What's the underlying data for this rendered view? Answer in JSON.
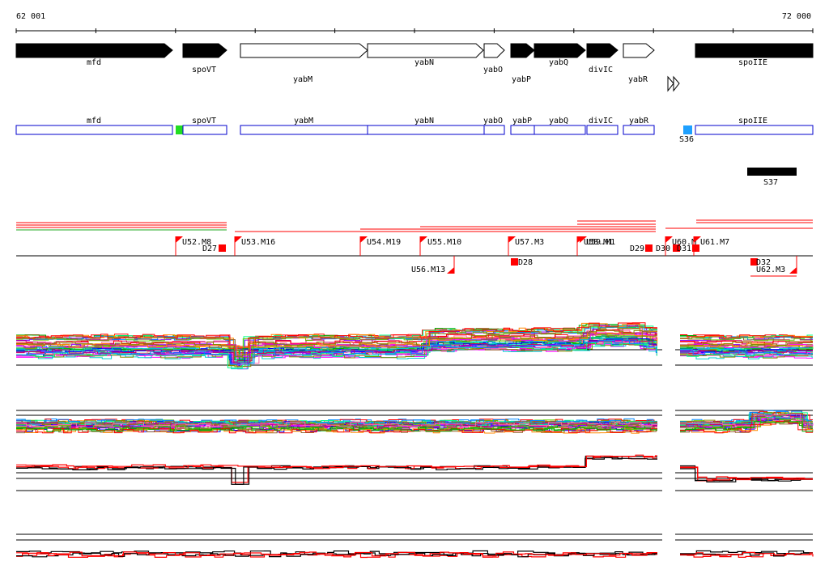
{
  "ruler": {
    "start_label": "62 001",
    "end_label": "72 000"
  },
  "colors": {
    "gene_fill": "#000000",
    "gene_outline": "#000000",
    "annotation_box": "#0000cc",
    "marker_green": "#22dd22",
    "marker_blue": "#1ea0ff",
    "segment_red": "#ff0000",
    "track_black": "#000000"
  },
  "genes": [
    {
      "name": "mfd",
      "strand": "+",
      "filled": true,
      "label_row": "top"
    },
    {
      "name": "spoVT",
      "strand": "+",
      "filled": true,
      "label_row": "top"
    },
    {
      "name": "yabM",
      "strand": "+",
      "filled": false,
      "label_row": "bottom"
    },
    {
      "name": "yabN",
      "strand": "+",
      "filled": false,
      "label_row": "top"
    },
    {
      "name": "yabO",
      "strand": "+",
      "filled": false,
      "label_row": "top"
    },
    {
      "name": "yabP",
      "strand": "+",
      "filled": true,
      "label_row": "bottom"
    },
    {
      "name": "yabQ",
      "strand": "+",
      "filled": true,
      "label_row": "top"
    },
    {
      "name": "divIC",
      "strand": "+",
      "filled": true,
      "label_row": "top"
    },
    {
      "name": "yabR",
      "strand": "+",
      "filled": false,
      "label_row": "bottom"
    },
    {
      "name": "spoIIE",
      "strand": "+",
      "filled": true,
      "label_row": "top"
    }
  ],
  "annotations": [
    {
      "name": "mfd"
    },
    {
      "name": "spoVT"
    },
    {
      "name": "yabM"
    },
    {
      "name": "yabN"
    },
    {
      "name": "yabO"
    },
    {
      "name": "yabP"
    },
    {
      "name": "yabQ"
    },
    {
      "name": "divIC"
    },
    {
      "name": "yabR"
    },
    {
      "name": "spoIIE"
    }
  ],
  "markers": {
    "S36": {
      "label": "S36",
      "color": "blue"
    },
    "S37": {
      "label": "S37",
      "color": "black"
    }
  },
  "segments": {
    "upper": [
      {
        "label": "U52.M8"
      },
      {
        "label": "D27"
      },
      {
        "label": "U53.M16"
      },
      {
        "label": "U54.M19"
      },
      {
        "label": "U55.M10"
      },
      {
        "label": "U57.M3"
      },
      {
        "label": "U58.M1"
      },
      {
        "label": "U59.M1"
      },
      {
        "label": "D29"
      },
      {
        "label": "D30"
      },
      {
        "label": "U60.M"
      },
      {
        "label": "D31"
      },
      {
        "label": "U61.M7"
      }
    ],
    "lower": [
      {
        "label": "U56.M13"
      },
      {
        "label": "D28"
      },
      {
        "label": "D32"
      },
      {
        "label": "U62.M3"
      }
    ]
  },
  "tracks": [
    {
      "id": "expression-multi",
      "style": "multicolor"
    },
    {
      "id": "expression-multi-2",
      "style": "multicolor"
    },
    {
      "id": "expression-summary",
      "style": "black-red"
    },
    {
      "id": "expression-summary-2",
      "style": "black-red"
    }
  ]
}
